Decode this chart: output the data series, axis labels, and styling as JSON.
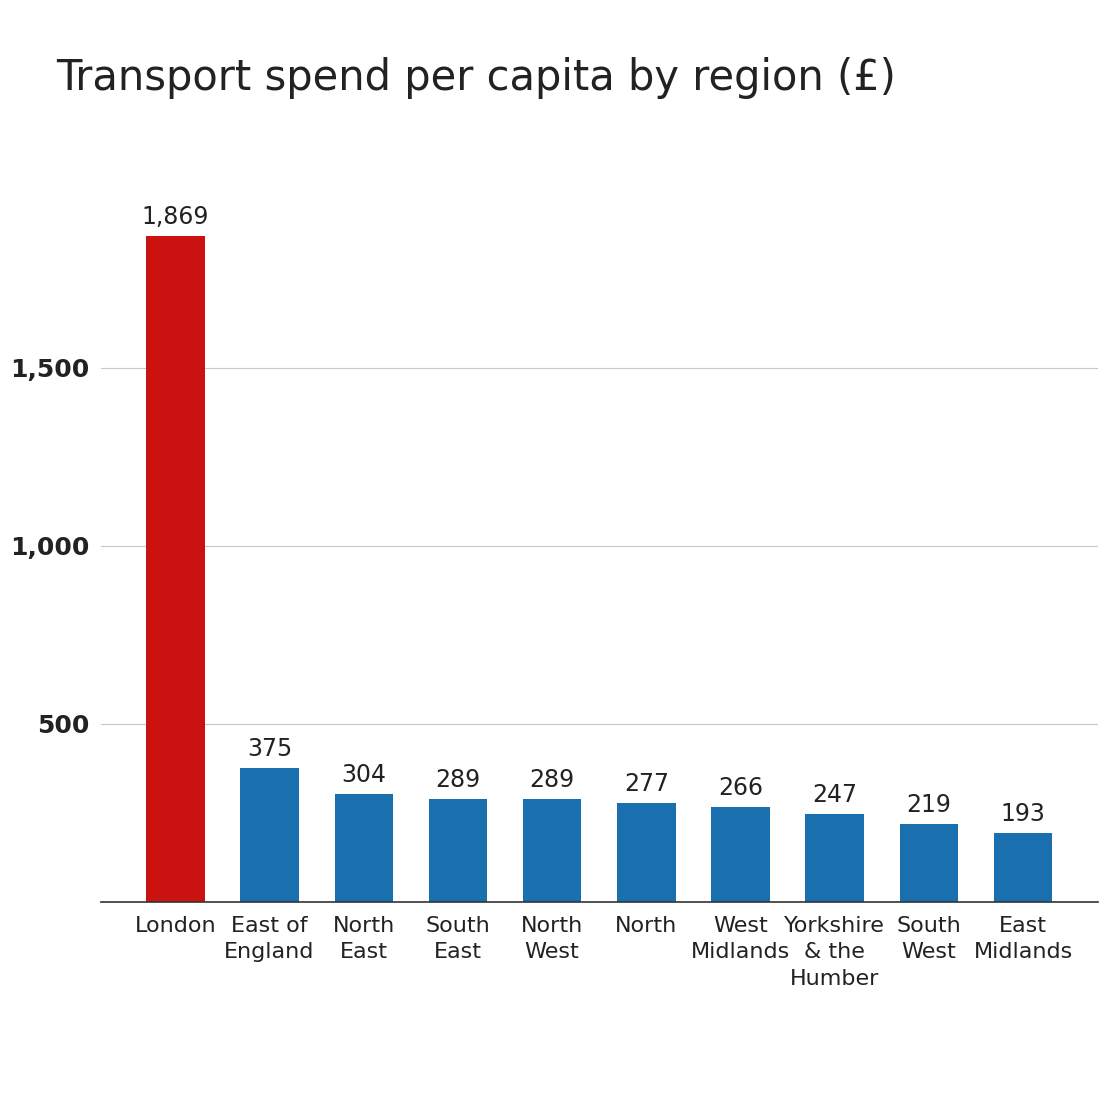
{
  "title": "Transport spend per capita by region (£)",
  "categories": [
    "London",
    "East of\nEngland",
    "North\nEast",
    "South\nEast",
    "North\nWest",
    "North",
    "West\nMidlands",
    "Yorkshire\n& the\nHumber",
    "South\nWest",
    "East\nMidlands"
  ],
  "values": [
    1869,
    375,
    304,
    289,
    289,
    277,
    266,
    247,
    219,
    193
  ],
  "bar_colors": [
    "#cc1111",
    "#1a6faf",
    "#1a6faf",
    "#1a6faf",
    "#1a6faf",
    "#1a6faf",
    "#1a6faf",
    "#1a6faf",
    "#1a6faf",
    "#1a6faf"
  ],
  "value_labels": [
    "1,869",
    "375",
    "304",
    "289",
    "289",
    "277",
    "266",
    "247",
    "219",
    "193"
  ],
  "yticks": [
    0,
    500,
    1000,
    1500
  ],
  "ytick_labels": [
    "",
    "500",
    "1,000",
    "1,500"
  ],
  "ylim": [
    0,
    2100
  ],
  "title_fontsize": 30,
  "tick_fontsize": 18,
  "value_label_fontsize": 17,
  "background_color": "#ffffff",
  "grid_color": "#c8c8c8",
  "text_color": "#222222",
  "bar_width": 0.62
}
